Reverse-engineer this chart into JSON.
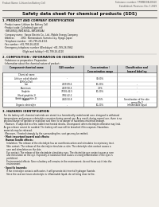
{
  "bg_color": "#f0ede8",
  "header_top_left": "Product Name: Lithium Ion Battery Cell",
  "header_top_right": "Substance number: TPSMB30A-00610\nEstablished / Revision: Dec.7.2019",
  "title": "Safety data sheet for chemical products (SDS)",
  "section1_title": "1. PRODUCT AND COMPANY IDENTIFICATION",
  "section1_lines": [
    "  · Product name: Lithium Ion Battery Cell",
    "  · Product code: Cylindrical-type cell",
    "    (INR18650J, INR18650L, INR18650A)",
    "  · Company name:  Sanyo Electric Co., Ltd., Mobile Energy Company",
    "  · Address:         2001  Kamionakuiri, Sumoto-City, Hyogo, Japan",
    "  · Telephone number:  +81-799-26-4111",
    "  · Fax number: +81-799-26-4120",
    "  · Emergency telephone number (Weekdays) +81-799-26-3962",
    "                             (Night and holiday) +81-799-26-4120"
  ],
  "section2_title": "2. COMPOSITION / INFORMATION ON INGREDIENTS",
  "section2_intro": "  · Substance or preparation: Preparation",
  "section2_sub": "  · Information about the chemical nature of product:",
  "table_headers": [
    "Component-chemical name",
    "CAS number",
    "Concentration /\nConcentration range",
    "Classification and\nhazard labeling"
  ],
  "table_rows": [
    [
      "Chemical name",
      "",
      "",
      ""
    ],
    [
      "Lithium cobalt dioxide\n(LiMnCoO(x))",
      "-",
      "30-60%",
      ""
    ],
    [
      "Iron",
      "7439-89-6",
      "10-20%",
      "-"
    ],
    [
      "Aluminum",
      "7429-90-5",
      "2-5%",
      "-"
    ],
    [
      "Graphite\n(Hard graphite-1)\n(Artificial graphite-1)",
      "77592-42-5\n7782-42-2",
      "10-20%",
      "-"
    ],
    [
      "Copper",
      "7440-50-8",
      "5-15%",
      "Sensitization of the skin\ngroup No.2"
    ],
    [
      "Organic electrolyte",
      "-",
      "10-20%",
      "Inflammable liquid"
    ]
  ],
  "section3_title": "3. HAZARDS IDENTIFICATION",
  "section3_lines": [
    "  For the battery cell, chemical materials are stored in a hermetically sealed metal case, designed to withstand",
    "  temperatures and pressure-electrolyte-corrosion during normal use. As a result, during normal use, there is no",
    "  physical danger of ignition or explosion and there is no danger of hazardous materials leakage.",
    "    However, if subjected to a fire, added mechanical shocks, decomposed, when electrolyte otherwise may leak.",
    "  As gas release cannot be avoided. The battery cell case will be breached if fire-exposes. Hazardous",
    "  materials may be released.",
    "    Moreover, if heated strongly by the surrounding fire, soot gas may be emitted."
  ],
  "section3_bullet1": "  · Most important hazard and effects:",
  "section3_human": "    Human health effects:",
  "section3_human_lines": [
    "      Inhalation: The release of the electrolyte has an anesthesia action and stimulates in respiratory tract.",
    "      Skin contact: The release of the electrolyte stimulates a skin. The electrolyte skin contact causes a",
    "      sore and stimulation on the skin.",
    "      Eye contact: The release of the electrolyte stimulates eyes. The electrolyte eye contact causes a sore",
    "      and stimulation on the eye. Especially, a substance that causes a strong inflammation of the eyes is",
    "      prohibited.",
    "      Environmental effects: Since a battery cell remains in the environment, do not throw out it into the",
    "      environment."
  ],
  "section3_specific": "  · Specific hazards:",
  "section3_specific_lines": [
    "      If the electrolyte contacts with water, it will generate detrimental hydrogen fluoride.",
    "      Since the seal-enclosure-electrolyte is inflammable liquid, do not bring close to fire."
  ]
}
